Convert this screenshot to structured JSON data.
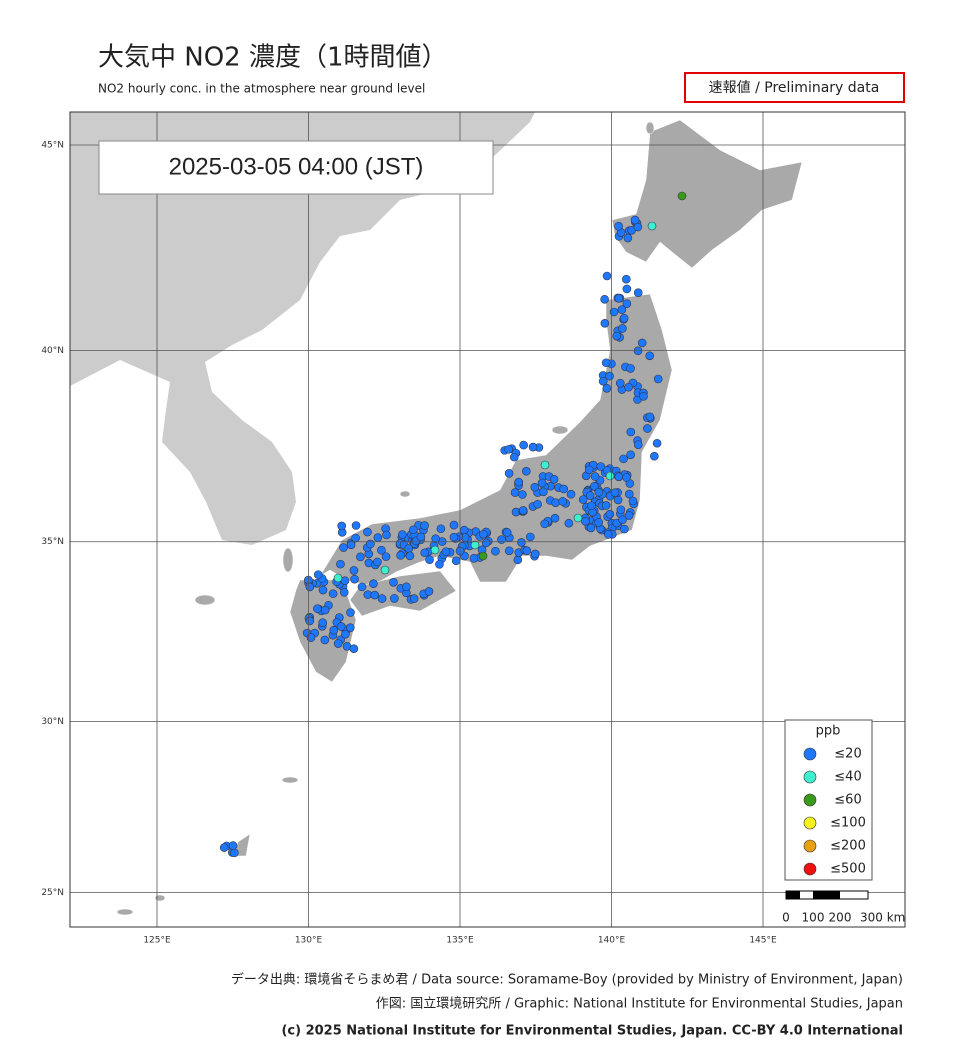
{
  "header": {
    "title": "大気中 NO2  濃度（1時間値）",
    "subtitle": "NO2 hourly conc. in the atmosphere near ground level",
    "badge": "速報値 / Preliminary data"
  },
  "map": {
    "timestamp": "2025-03-05  04:00 (JST)",
    "lon_ticks": [
      {
        "value": 125,
        "label": "125°E"
      },
      {
        "value": 130,
        "label": "130°E"
      },
      {
        "value": 135,
        "label": "135°E"
      },
      {
        "value": 140,
        "label": "140°E"
      },
      {
        "value": 145,
        "label": "145°E"
      }
    ],
    "lat_ticks": [
      {
        "value": 45,
        "label": "45°N"
      },
      {
        "value": 40,
        "label": "40°N"
      },
      {
        "value": 35,
        "label": "35°N"
      },
      {
        "value": 30,
        "label": "30°N"
      },
      {
        "value": 25,
        "label": "25°N"
      }
    ],
    "legend": {
      "title": "ppb",
      "items": [
        {
          "label": "≤20",
          "color": "#1e78ff"
        },
        {
          "label": "≤40",
          "color": "#3ff0d0"
        },
        {
          "label": "≤60",
          "color": "#3a9a1a"
        },
        {
          "label": "≤100",
          "color": "#f5f01e"
        },
        {
          "label": "≤200",
          "color": "#e8a010"
        },
        {
          "label": "≤500",
          "color": "#f01010"
        }
      ]
    },
    "scale_labels": [
      "0",
      "100",
      "200",
      "300 km"
    ]
  },
  "footer": {
    "source": "データ出典: 環境省そらまめ君 / Data source: Soramame-Boy (provided by Ministry of Environment, Japan)",
    "graphic": "作図: 国立環境研究所 / Graphic: National Institute for Environmental Studies, Japan",
    "copyright": "(c) 2025 National Institute for Environmental Studies, Japan. CC-BY 4.0 International"
  }
}
